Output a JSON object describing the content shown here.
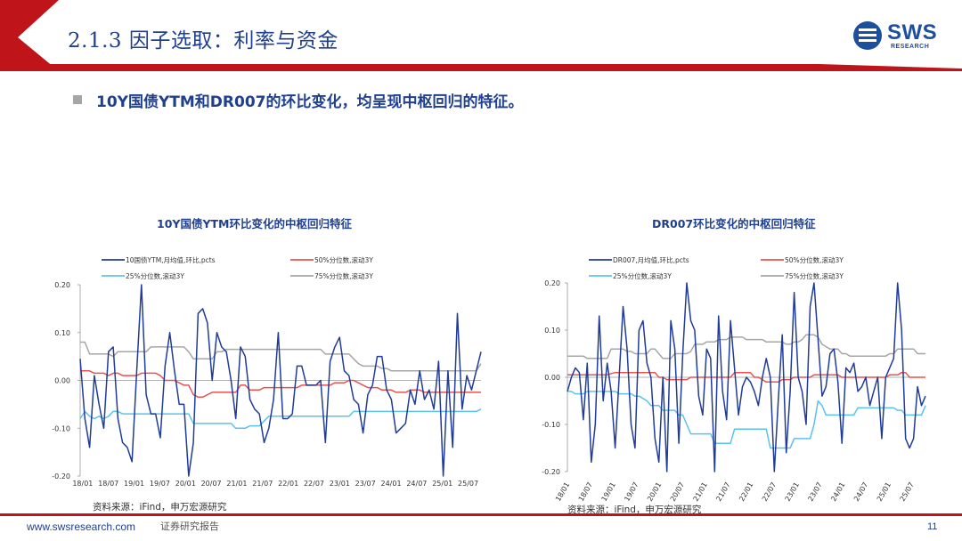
{
  "header": {
    "title": "2.1.3 因子选取：利率与资金",
    "logo_text": "SWS",
    "logo_sub": "RESEARCH"
  },
  "bullet": "10Y国债YTM和DR007的环比变化，均呈现中枢回归的特征。",
  "footer": {
    "url": "www.swsresearch.com",
    "note": "证券研究报告",
    "page": "11"
  },
  "colors": {
    "brand_red": "#c0141b",
    "brand_blue": "#1f3f8f",
    "series_main": "#1f3c99",
    "series_p50": "#e8534f",
    "series_p25": "#5bc2ef",
    "series_p75": "#a6a6a6"
  },
  "chart_data": [
    {
      "type": "line",
      "title": "10Y国债YTM环比变化的中枢回归特征",
      "source": "资料来源：iFind，申万宏源研究",
      "ylim": [
        -0.2,
        0.2
      ],
      "yticks": [
        "0.20",
        "0.10",
        "0.00",
        "-0.10",
        "-0.20"
      ],
      "xticks": [
        "18/01",
        "18/07",
        "19/01",
        "19/07",
        "20/01",
        "20/07",
        "21/01",
        "21/07",
        "22/01",
        "22/07",
        "23/01",
        "23/07",
        "24/01",
        "24/07",
        "25/01",
        "25/07"
      ],
      "legend": [
        "10国债YTM,月均值,环比,pcts",
        "50%分位数,滚动3Y",
        "25%分位数,滚动3Y",
        "75%分位数,滚动3Y"
      ],
      "series": [
        {
          "name": "10国债YTM,月均值,环比,pcts",
          "values": [
            0.045,
            -0.08,
            -0.14,
            0.01,
            -0.05,
            -0.1,
            0.06,
            0.07,
            -0.08,
            -0.13,
            -0.14,
            -0.17,
            0.02,
            0.2,
            -0.03,
            -0.07,
            -0.07,
            -0.12,
            0.03,
            0.1,
            0.02,
            -0.05,
            -0.05,
            -0.21,
            -0.13,
            0.14,
            0.15,
            0.12,
            0.0,
            0.1,
            0.07,
            0.06,
            0.0,
            -0.08,
            0.07,
            0.05,
            -0.04,
            -0.06,
            -0.07,
            -0.13,
            -0.1,
            -0.04,
            0.1,
            -0.08,
            -0.08,
            -0.07,
            0.03,
            0.03,
            -0.01,
            -0.01,
            -0.01,
            0.0,
            -0.13,
            0.04,
            0.07,
            0.09,
            0.02,
            0.01,
            -0.04,
            -0.05,
            -0.11,
            -0.03,
            -0.01,
            0.05,
            0.05,
            -0.02,
            -0.04,
            -0.11,
            -0.1,
            -0.09,
            -0.02,
            -0.05,
            0.02,
            -0.04,
            -0.02,
            -0.06,
            0.04,
            -0.21,
            0.02,
            -0.14,
            0.14,
            -0.06,
            0.01,
            -0.02,
            0.02,
            0.06
          ]
        },
        {
          "name": "50%分位数,滚动3Y",
          "values": [
            0.02,
            0.02,
            0.02,
            0.015,
            0.015,
            0.015,
            0.01,
            0.015,
            0.015,
            0.01,
            0.01,
            0.01,
            0.01,
            0.015,
            0.015,
            0.015,
            0.015,
            0.01,
            0.0,
            0.0,
            0.0,
            -0.005,
            -0.01,
            -0.01,
            -0.03,
            -0.035,
            -0.035,
            -0.03,
            -0.025,
            -0.025,
            -0.025,
            -0.025,
            -0.025,
            -0.025,
            -0.01,
            -0.01,
            -0.02,
            -0.02,
            -0.02,
            -0.015,
            -0.015,
            -0.015,
            -0.015,
            -0.015,
            -0.015,
            -0.015,
            -0.015,
            -0.01,
            -0.01,
            -0.01,
            -0.01,
            -0.01,
            -0.01,
            -0.01,
            -0.005,
            -0.005,
            -0.005,
            0.0,
            0.0,
            -0.005,
            -0.01,
            -0.015,
            -0.015,
            -0.015,
            -0.02,
            -0.02,
            -0.02,
            -0.025,
            -0.025,
            -0.025,
            -0.02,
            -0.02,
            -0.02,
            -0.025,
            -0.025,
            -0.025,
            -0.025,
            -0.025,
            -0.025,
            -0.025,
            -0.025,
            -0.025,
            -0.025,
            -0.025,
            -0.025,
            -0.025
          ]
        },
        {
          "name": "25%分位数,滚动3Y",
          "values": [
            -0.08,
            -0.065,
            -0.075,
            -0.08,
            -0.075,
            -0.08,
            -0.075,
            -0.065,
            -0.065,
            -0.07,
            -0.07,
            -0.07,
            -0.07,
            -0.07,
            -0.07,
            -0.07,
            -0.07,
            -0.07,
            -0.07,
            -0.07,
            -0.07,
            -0.07,
            -0.07,
            -0.07,
            -0.09,
            -0.09,
            -0.09,
            -0.09,
            -0.09,
            -0.09,
            -0.09,
            -0.09,
            -0.09,
            -0.1,
            -0.1,
            -0.1,
            -0.095,
            -0.095,
            -0.095,
            -0.085,
            -0.075,
            -0.075,
            -0.075,
            -0.075,
            -0.075,
            -0.075,
            -0.075,
            -0.075,
            -0.075,
            -0.075,
            -0.075,
            -0.075,
            -0.075,
            -0.075,
            -0.075,
            -0.075,
            -0.075,
            -0.075,
            -0.065,
            -0.065,
            -0.065,
            -0.065,
            -0.065,
            -0.065,
            -0.065,
            -0.065,
            -0.065,
            -0.065,
            -0.065,
            -0.065,
            -0.065,
            -0.065,
            -0.065,
            -0.065,
            -0.065,
            -0.065,
            -0.065,
            -0.065,
            -0.065,
            -0.065,
            -0.065,
            -0.065,
            -0.065,
            -0.065,
            -0.065,
            -0.06
          ]
        },
        {
          "name": "75%分位数,滚动3Y",
          "values": [
            0.08,
            0.08,
            0.055,
            0.055,
            0.055,
            0.055,
            0.055,
            0.05,
            0.06,
            0.06,
            0.06,
            0.06,
            0.06,
            0.06,
            0.06,
            0.07,
            0.07,
            0.07,
            0.07,
            0.07,
            0.07,
            0.07,
            0.07,
            0.06,
            0.045,
            0.045,
            0.045,
            0.045,
            0.045,
            0.06,
            0.06,
            0.065,
            0.065,
            0.065,
            0.065,
            0.065,
            0.065,
            0.065,
            0.065,
            0.065,
            0.065,
            0.065,
            0.065,
            0.065,
            0.065,
            0.065,
            0.065,
            0.065,
            0.065,
            0.065,
            0.065,
            0.065,
            0.055,
            0.055,
            0.055,
            0.055,
            0.055,
            0.055,
            0.045,
            0.035,
            0.03,
            0.03,
            0.03,
            0.03,
            0.025,
            0.025,
            0.02,
            0.02,
            0.02,
            0.02,
            0.02,
            0.02,
            0.02,
            0.02,
            0.02,
            0.02,
            0.02,
            0.02,
            0.02,
            0.02,
            0.02,
            0.02,
            0.02,
            0.02,
            0.02,
            0.035
          ]
        }
      ]
    },
    {
      "type": "line",
      "title": "DR007环比变化的中枢回归特征",
      "source": "资料来源：iFind，申万宏源研究",
      "ylim": [
        -0.2,
        0.2
      ],
      "yticks": [
        "0.20",
        "0.10",
        "0.00",
        "-0.10",
        "-0.20"
      ],
      "xticks": [
        "18/01",
        "18/07",
        "19/01",
        "19/07",
        "20/01",
        "20/07",
        "21/01",
        "21/07",
        "22/01",
        "22/07",
        "23/01",
        "23/07",
        "24/01",
        "24/07",
        "25/01",
        "25/07"
      ],
      "legend": [
        "DR007,月均值,环比,pcts",
        "50%分位数,滚动3Y",
        "25%分位数,滚动3Y",
        "75%分位数,滚动3Y"
      ],
      "series": [
        {
          "name": "DR007,月均值,环比,pcts",
          "values": [
            -0.03,
            0.0,
            0.02,
            0.01,
            -0.09,
            0.03,
            -0.18,
            -0.1,
            0.13,
            -0.05,
            0.03,
            -0.03,
            -0.15,
            0.0,
            0.15,
            0.06,
            -0.1,
            -0.15,
            0.1,
            0.12,
            0.03,
            0.0,
            -0.13,
            -0.18,
            0.0,
            -0.21,
            0.12,
            0.06,
            -0.14,
            0.05,
            0.2,
            0.12,
            0.1,
            -0.04,
            -0.08,
            0.06,
            0.04,
            -0.21,
            0.13,
            -0.03,
            -0.09,
            0.12,
            0.02,
            -0.08,
            -0.02,
            0.0,
            -0.01,
            -0.03,
            -0.06,
            0.0,
            0.04,
            0.0,
            -0.2,
            -0.05,
            0.09,
            -0.16,
            -0.03,
            0.18,
            0.0,
            -0.03,
            -0.1,
            0.15,
            0.2,
            0.08,
            -0.04,
            -0.02,
            0.05,
            0.06,
            -0.01,
            -0.14,
            0.02,
            0.01,
            0.03,
            -0.03,
            -0.02,
            0.0,
            -0.06,
            -0.03,
            0.0,
            -0.13,
            0.0,
            0.02,
            0.04,
            0.2,
            0.1,
            -0.13,
            -0.15,
            -0.13,
            -0.02,
            -0.06,
            -0.04
          ]
        },
        {
          "name": "50%分位数,滚动3Y",
          "values": [
            0.005,
            0.005,
            0.005,
            0.005,
            0.005,
            0.005,
            0.005,
            0.005,
            0.005,
            0.005,
            0.005,
            0.008,
            0.01,
            0.01,
            0.01,
            0.01,
            0.01,
            0.01,
            0.01,
            0.01,
            0.01,
            0.01,
            0.01,
            0.0,
            0.0,
            -0.005,
            -0.005,
            -0.005,
            -0.005,
            -0.005,
            -0.005,
            0.0,
            0.0,
            0.0,
            0.0,
            0.0,
            0.0,
            0.0,
            0.0,
            0.0,
            0.0,
            0.0,
            0.01,
            0.01,
            0.01,
            0.01,
            0.01,
            0.0,
            0.0,
            -0.005,
            -0.01,
            -0.01,
            -0.01,
            -0.01,
            -0.005,
            -0.005,
            -0.005,
            0.0,
            0.0,
            0.0,
            0.0,
            0.0,
            0.005,
            0.005,
            0.005,
            0.005,
            0.005,
            0.005,
            0.005,
            0.0,
            0.0,
            0.0,
            0.0,
            0.0,
            0.0,
            0.0,
            0.0,
            0.0,
            0.0,
            0.0,
            0.0,
            0.005,
            0.005,
            0.005,
            0.01,
            0.01,
            0.0,
            0.0,
            0.0,
            0.0,
            0.0
          ]
        },
        {
          "name": "25%分位数,滚动3Y",
          "values": [
            -0.03,
            -0.03,
            -0.035,
            -0.035,
            -0.035,
            -0.03,
            -0.03,
            -0.03,
            -0.03,
            -0.03,
            -0.03,
            -0.03,
            -0.03,
            -0.035,
            -0.035,
            -0.035,
            -0.035,
            -0.04,
            -0.04,
            -0.045,
            -0.05,
            -0.06,
            -0.06,
            -0.06,
            -0.07,
            -0.07,
            -0.07,
            -0.07,
            -0.08,
            -0.08,
            -0.1,
            -0.12,
            -0.12,
            -0.12,
            -0.12,
            -0.12,
            -0.12,
            -0.14,
            -0.14,
            -0.14,
            -0.14,
            -0.14,
            -0.11,
            -0.11,
            -0.11,
            -0.11,
            -0.11,
            -0.11,
            -0.11,
            -0.11,
            -0.11,
            -0.15,
            -0.15,
            -0.15,
            -0.15,
            -0.15,
            -0.15,
            -0.13,
            -0.13,
            -0.13,
            -0.13,
            -0.13,
            -0.1,
            -0.05,
            -0.06,
            -0.08,
            -0.08,
            -0.08,
            -0.08,
            -0.08,
            -0.08,
            -0.08,
            -0.08,
            -0.065,
            -0.065,
            -0.065,
            -0.065,
            -0.065,
            -0.065,
            -0.065,
            -0.065,
            -0.065,
            -0.065,
            -0.07,
            -0.07,
            -0.08,
            -0.08,
            -0.08,
            -0.08,
            -0.08,
            -0.06
          ]
        },
        {
          "name": "75%分位数,滚动3Y",
          "values": [
            0.045,
            0.045,
            0.045,
            0.045,
            0.045,
            0.04,
            0.04,
            0.04,
            0.04,
            0.04,
            0.04,
            0.06,
            0.06,
            0.06,
            0.06,
            0.055,
            0.055,
            0.05,
            0.05,
            0.05,
            0.05,
            0.06,
            0.06,
            0.05,
            0.04,
            0.04,
            0.04,
            0.05,
            0.05,
            0.05,
            0.05,
            0.055,
            0.07,
            0.07,
            0.07,
            0.075,
            0.075,
            0.075,
            0.08,
            0.08,
            0.08,
            0.085,
            0.085,
            0.085,
            0.085,
            0.08,
            0.08,
            0.08,
            0.08,
            0.08,
            0.075,
            0.075,
            0.075,
            0.075,
            0.075,
            0.07,
            0.07,
            0.075,
            0.075,
            0.08,
            0.09,
            0.09,
            0.09,
            0.085,
            0.07,
            0.065,
            0.06,
            0.06,
            0.06,
            0.05,
            0.05,
            0.045,
            0.045,
            0.045,
            0.045,
            0.045,
            0.045,
            0.045,
            0.045,
            0.045,
            0.045,
            0.05,
            0.05,
            0.06,
            0.06,
            0.06,
            0.06,
            0.06,
            0.05,
            0.05,
            0.05
          ]
        }
      ]
    }
  ]
}
